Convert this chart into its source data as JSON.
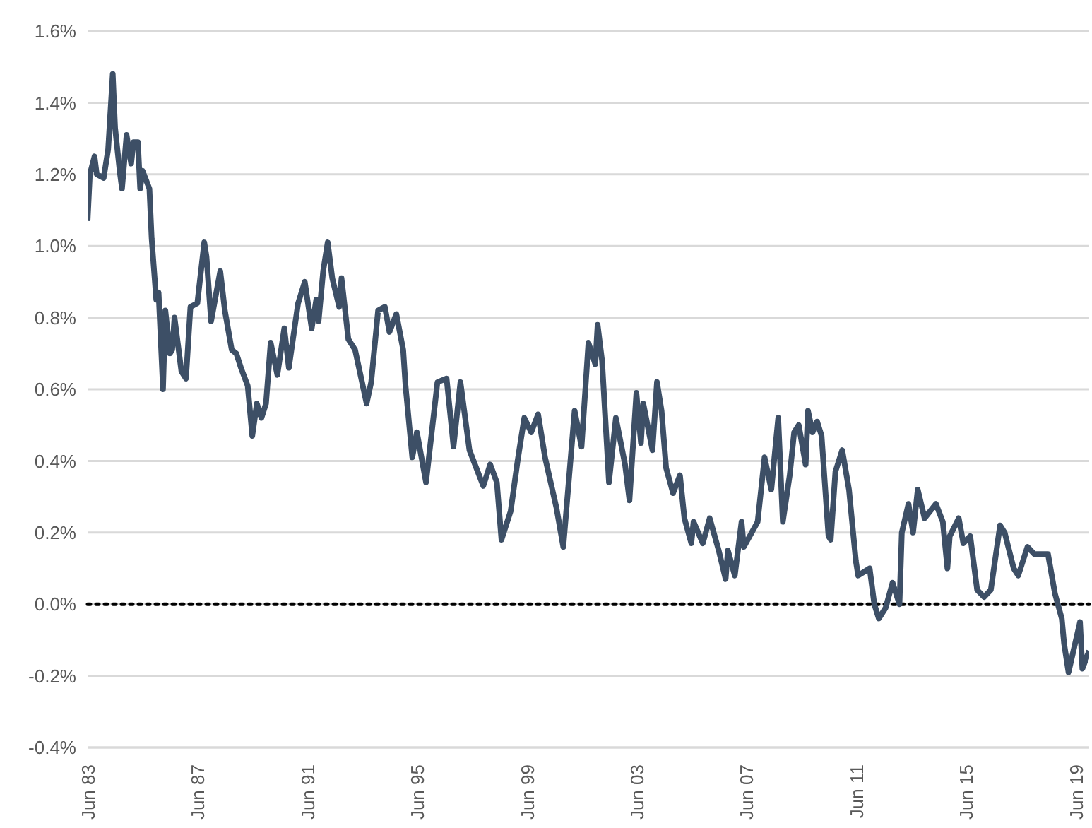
{
  "chart_data": {
    "type": "line",
    "x": [
      "1983-06",
      "1983-07",
      "1983-09",
      "1983-10",
      "1984-01",
      "1984-03",
      "1984-05",
      "1984-06",
      "1984-08",
      "1984-09",
      "1984-11",
      "1985-01",
      "1985-02",
      "1985-04",
      "1985-05",
      "1985-06",
      "1985-09",
      "1985-10",
      "1985-12",
      "1986-01",
      "1986-03",
      "1986-04",
      "1986-06",
      "1986-07",
      "1986-08",
      "1986-11",
      "1987-01",
      "1987-03",
      "1987-06",
      "1987-09",
      "1987-10",
      "1987-12",
      "1988-04",
      "1988-06",
      "1988-09",
      "1988-11",
      "1989-01",
      "1989-04",
      "1989-06",
      "1989-08",
      "1989-10",
      "1989-12",
      "1990-02",
      "1990-05",
      "1990-08",
      "1990-10",
      "1991-02",
      "1991-05",
      "1991-08",
      "1991-10",
      "1991-11",
      "1992-01",
      "1992-03",
      "1992-05",
      "1992-08",
      "1992-09",
      "1992-12",
      "1993-03",
      "1993-06",
      "1993-08",
      "1993-10",
      "1994-01",
      "1994-04",
      "1994-06",
      "1994-09",
      "1994-12",
      "1995-01",
      "1995-04",
      "1995-06",
      "1995-10",
      "1996-03",
      "1996-07",
      "1996-10",
      "1997-01",
      "1997-05",
      "1997-11",
      "1998-02",
      "1998-05",
      "1998-07",
      "1998-11",
      "1999-02",
      "1999-05",
      "1999-08",
      "1999-11",
      "2000-02",
      "2000-07",
      "2000-10",
      "2001-03",
      "2001-06",
      "2001-09",
      "2001-12",
      "2002-01",
      "2002-03",
      "2002-06",
      "2002-09",
      "2003-01",
      "2003-03",
      "2003-06",
      "2003-08",
      "2003-09",
      "2004-01",
      "2004-03",
      "2004-05",
      "2004-07",
      "2004-10",
      "2005-01",
      "2005-03",
      "2005-06",
      "2005-07",
      "2005-11",
      "2006-02",
      "2006-06",
      "2006-09",
      "2006-10",
      "2007-01",
      "2007-04",
      "2007-05",
      "2007-11",
      "2008-02",
      "2008-05",
      "2008-08",
      "2008-10",
      "2009-01",
      "2009-03",
      "2009-05",
      "2009-08",
      "2009-09",
      "2009-11",
      "2010-01",
      "2010-03",
      "2010-06",
      "2010-07",
      "2010-09",
      "2010-12",
      "2011-03",
      "2011-06",
      "2011-07",
      "2011-12",
      "2012-02",
      "2012-04",
      "2012-07",
      "2012-10",
      "2013-01",
      "2013-02",
      "2013-05",
      "2013-07",
      "2013-09",
      "2013-12",
      "2014-05",
      "2014-08",
      "2014-10",
      "2014-11",
      "2015-03",
      "2015-05",
      "2015-08",
      "2015-11",
      "2016-02",
      "2016-05",
      "2016-09",
      "2016-11",
      "2017-03",
      "2017-05",
      "2017-07",
      "2017-09",
      "2017-12",
      "2018-06",
      "2018-09",
      "2018-12",
      "2019-01",
      "2019-03",
      "2019-08",
      "2019-09",
      "2019-12"
    ],
    "series": [
      {
        "color": "#3d4f66",
        "values": [
          1.07,
          1.2,
          1.25,
          1.2,
          1.19,
          1.27,
          1.48,
          1.33,
          1.21,
          1.16,
          1.31,
          1.23,
          1.29,
          1.29,
          1.16,
          1.21,
          1.16,
          1.02,
          0.85,
          0.87,
          0.6,
          0.82,
          0.7,
          0.71,
          0.8,
          0.65,
          0.63,
          0.83,
          0.84,
          1.01,
          0.97,
          0.79,
          0.93,
          0.82,
          0.71,
          0.7,
          0.66,
          0.61,
          0.47,
          0.56,
          0.52,
          0.56,
          0.73,
          0.64,
          0.77,
          0.66,
          0.84,
          0.9,
          0.77,
          0.85,
          0.79,
          0.93,
          1.01,
          0.91,
          0.83,
          0.91,
          0.74,
          0.71,
          0.62,
          0.56,
          0.62,
          0.82,
          0.83,
          0.76,
          0.81,
          0.71,
          0.61,
          0.41,
          0.48,
          0.34,
          0.62,
          0.63,
          0.44,
          0.62,
          0.43,
          0.33,
          0.39,
          0.34,
          0.18,
          0.26,
          0.4,
          0.52,
          0.48,
          0.53,
          0.41,
          0.27,
          0.16,
          0.54,
          0.44,
          0.73,
          0.67,
          0.78,
          0.68,
          0.34,
          0.52,
          0.39,
          0.29,
          0.59,
          0.45,
          0.56,
          0.43,
          0.62,
          0.54,
          0.38,
          0.31,
          0.36,
          0.24,
          0.17,
          0.23,
          0.17,
          0.24,
          0.15,
          0.07,
          0.15,
          0.08,
          0.23,
          0.16,
          0.23,
          0.41,
          0.32,
          0.52,
          0.23,
          0.36,
          0.48,
          0.5,
          0.39,
          0.54,
          0.48,
          0.51,
          0.47,
          0.19,
          0.18,
          0.37,
          0.43,
          0.32,
          0.12,
          0.08,
          0.1,
          0.0,
          -0.04,
          -0.01,
          0.06,
          0.0,
          0.2,
          0.28,
          0.2,
          0.32,
          0.24,
          0.28,
          0.23,
          0.1,
          0.19,
          0.24,
          0.17,
          0.19,
          0.04,
          0.02,
          0.04,
          0.22,
          0.2,
          0.1,
          0.08,
          0.12,
          0.16,
          0.14,
          0.14,
          0.03,
          -0.04,
          -0.11,
          -0.19,
          -0.05,
          -0.18,
          -0.13
        ]
      }
    ],
    "xlim": [
      "1983-06",
      "2019-12"
    ],
    "xticks": [
      {
        "value": "1983-06",
        "label": "Jun 83"
      },
      {
        "value": "1987-06",
        "label": "Jun 87"
      },
      {
        "value": "1991-06",
        "label": "Jun 91"
      },
      {
        "value": "1995-06",
        "label": "Jun 95"
      },
      {
        "value": "1999-06",
        "label": "Jun 99"
      },
      {
        "value": "2003-06",
        "label": "Jun 03"
      },
      {
        "value": "2007-06",
        "label": "Jun 07"
      },
      {
        "value": "2011-06",
        "label": "Jun 11"
      },
      {
        "value": "2015-06",
        "label": "Jun 15"
      },
      {
        "value": "2019-06",
        "label": "Jun 19"
      }
    ],
    "ylim": [
      -0.4,
      1.6
    ],
    "yticks": [
      {
        "value": -0.4,
        "label": "-0.4%"
      },
      {
        "value": -0.2,
        "label": "-0.2%"
      },
      {
        "value": 0,
        "label": "0.0%"
      },
      {
        "value": 0.2,
        "label": "0.2%"
      },
      {
        "value": 0.4,
        "label": "0.4%"
      },
      {
        "value": 0.6,
        "label": "0.6%"
      },
      {
        "value": 0.8,
        "label": "0.8%"
      },
      {
        "value": 1.0,
        "label": "1.0%"
      },
      {
        "value": 1.2,
        "label": "1.2%"
      },
      {
        "value": 1.4,
        "label": "1.4%"
      },
      {
        "value": 1.6,
        "label": "1.6%"
      }
    ],
    "grid": "y",
    "ref_lines": [
      {
        "axis": "y",
        "value": 0,
        "color": "#000000",
        "line_style": "dotted"
      }
    ]
  }
}
